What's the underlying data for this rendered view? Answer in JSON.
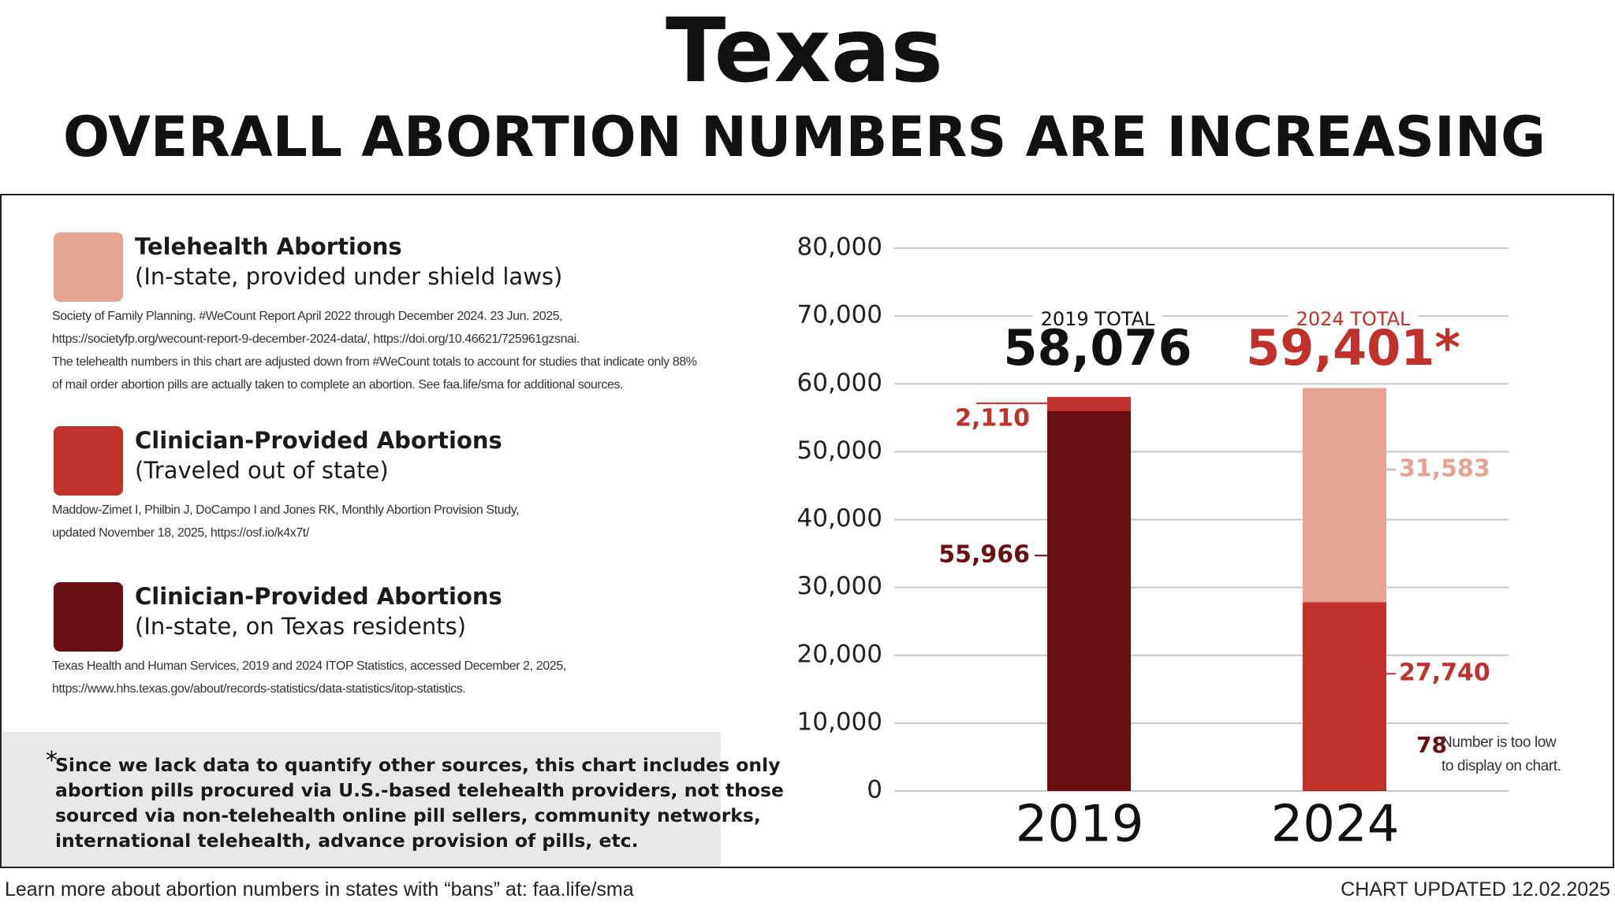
{
  "chart_data": {
    "type": "stacked_bar",
    "title": "Texas",
    "subtitle": "OVERALL ABORTION NUMBERS ARE INCREASING",
    "categories": [
      "2019",
      "2024"
    ],
    "series": [
      {
        "name": "Clinician-Provided Abortions",
        "detail": "(In-state, on Texas residents)",
        "color": "#6a0e12",
        "values": [
          55966,
          78
        ],
        "value_labels": [
          "55,966",
          "78"
        ],
        "source": [
          "Texas Health and Human Services, 2019 and 2024 ITOP Statistics, accessed December 2, 2025,",
          "https://www.hhs.texas.gov/about/records-statistics/data-statistics/itop-statistics."
        ]
      },
      {
        "name": "Clinician-Provided Abortions",
        "detail": "(Traveled out of state)",
        "color": "#c0312b",
        "values": [
          2110,
          27740
        ],
        "value_labels": [
          "2,110",
          "27,740"
        ],
        "source": [
          "Maddow-Zimet I, Philbin J, DoCampo I and Jones RK, Monthly Abortion Provision Study,",
          "updated November 18, 2025, https://osf.io/k4x7t/"
        ]
      },
      {
        "name": "Telehealth Abortions",
        "detail": "(In-state, provided under shield laws)",
        "color": "#e4a393",
        "values": [
          null,
          31583
        ],
        "value_labels": [
          null,
          "31,583"
        ],
        "source": [
          "Society of Family Planning. #WeCount Report April 2022 through December 2024. 23 Jun. 2025,",
          "https://societyfp.org/wecount-report-9-december-2024-data/, https://doi.org/10.46621/725961gzsnai.",
          "The telehealth numbers in this chart are adjusted down from #WeCount totals to account for studies that indicate only 88%",
          "of mail order abortion pills are actually taken to complete an abortion. See faa.life/sma for additional sources."
        ]
      }
    ],
    "totals": {
      "labels": [
        "2019 TOTAL",
        "2024 TOTAL"
      ],
      "values": [
        58076,
        59401
      ],
      "value_labels": [
        "58,076",
        "59,401*"
      ],
      "colors": [
        "#111111",
        "#c0312b"
      ]
    },
    "annotation": "Number is too low to display on chart.",
    "ylim": [
      0,
      80000
    ],
    "yticks": [
      0,
      {
        "value": 10000,
        "label": "10,000"
      },
      {
        "value": 20000,
        "label": "20,000"
      },
      {
        "value": 30000,
        "label": "30,000"
      },
      {
        "value": 40000,
        "label": "40,000"
      },
      {
        "value": 50000,
        "label": "50,000"
      },
      {
        "value": 60000,
        "label": "60,000"
      },
      {
        "value": 70000,
        "label": "70,000"
      },
      {
        "value": 80000,
        "label": "80,000"
      }
    ],
    "grid": true
  },
  "note": {
    "marker": "*",
    "lines": [
      "Since we lack data to quantify other sources, this chart includes only",
      "abortion pills procured via U.S.-based telehealth providers, not those",
      "sourced via non-telehealth online pill sellers, community networks,",
      "international telehealth, advance provision of pills, etc."
    ]
  },
  "footer": {
    "left": "Learn more about abortion numbers in states with “bans” at: faa.life/sma",
    "right": "CHART UPDATED 12.02.2025"
  }
}
